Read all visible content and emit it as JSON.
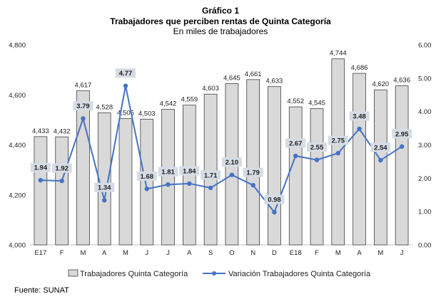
{
  "chart_data": {
    "type": "bar+line",
    "title": "Gráfico 1",
    "subtitle": "Trabajadores que perciben rentas de Quinta Categoría",
    "units": "En miles de trabajadores",
    "categories": [
      "E17",
      "F",
      "M",
      "A",
      "M",
      "J",
      "J",
      "A",
      "S",
      "O",
      "N",
      "D",
      "E18",
      "F",
      "M",
      "A",
      "M",
      "J"
    ],
    "series": [
      {
        "name": "Trabajadores Quinta Categoría",
        "type": "bar",
        "axis": "left",
        "values": [
          4433,
          4432,
          4617,
          4528,
          4505,
          4503,
          4542,
          4559,
          4603,
          4645,
          4661,
          4633,
          4552,
          4545,
          4744,
          4686,
          4620,
          4636
        ],
        "labels": [
          "4,433",
          "4,432",
          "4,617",
          "4,528",
          "4,505",
          "4,503",
          "4,542",
          "4,559",
          "4,603",
          "4,645",
          "4,661",
          "4,633",
          "4,552",
          "4,545",
          "4,744",
          "4,686",
          "4,620",
          "4,636"
        ]
      },
      {
        "name": "Variación Trabajadores Quinta Categoría",
        "type": "line",
        "axis": "right",
        "values": [
          1.94,
          1.92,
          3.79,
          1.34,
          4.77,
          1.68,
          1.81,
          1.84,
          1.71,
          2.1,
          1.79,
          0.98,
          2.67,
          2.55,
          2.75,
          3.48,
          2.54,
          2.95
        ],
        "labels": [
          "1.94",
          "1.92",
          "3.79",
          "1.34",
          "4.77",
          "1.68",
          "1.81",
          "1.84",
          "1.71",
          "2.10",
          "1.79",
          "0.98",
          "2.67",
          "2.55",
          "2.75",
          "3.48",
          "2.54",
          "2.95"
        ]
      }
    ],
    "y_left": {
      "min": 4000,
      "max": 4800,
      "ticks": [
        4000,
        4200,
        4400,
        4600,
        4800
      ],
      "tick_labels": [
        "4,000",
        "4,200",
        "4,400",
        "4,600",
        "4,800"
      ]
    },
    "y_right": {
      "min": 0,
      "max": 6,
      "ticks": [
        0,
        1,
        2,
        3,
        4,
        5,
        6
      ],
      "tick_labels": [
        "0.00",
        "1.00",
        "2.00",
        "3.00",
        "4.00",
        "5.00",
        "6.00"
      ]
    },
    "legend_position": "bottom",
    "source": "Fuente: SUNAT",
    "colors": {
      "bar_fill": "#d9d9d9",
      "bar_stroke": "#404040",
      "line": "#4472c4",
      "point_label_bg": "#d6dce5",
      "axis": "#bfbfbf"
    }
  }
}
